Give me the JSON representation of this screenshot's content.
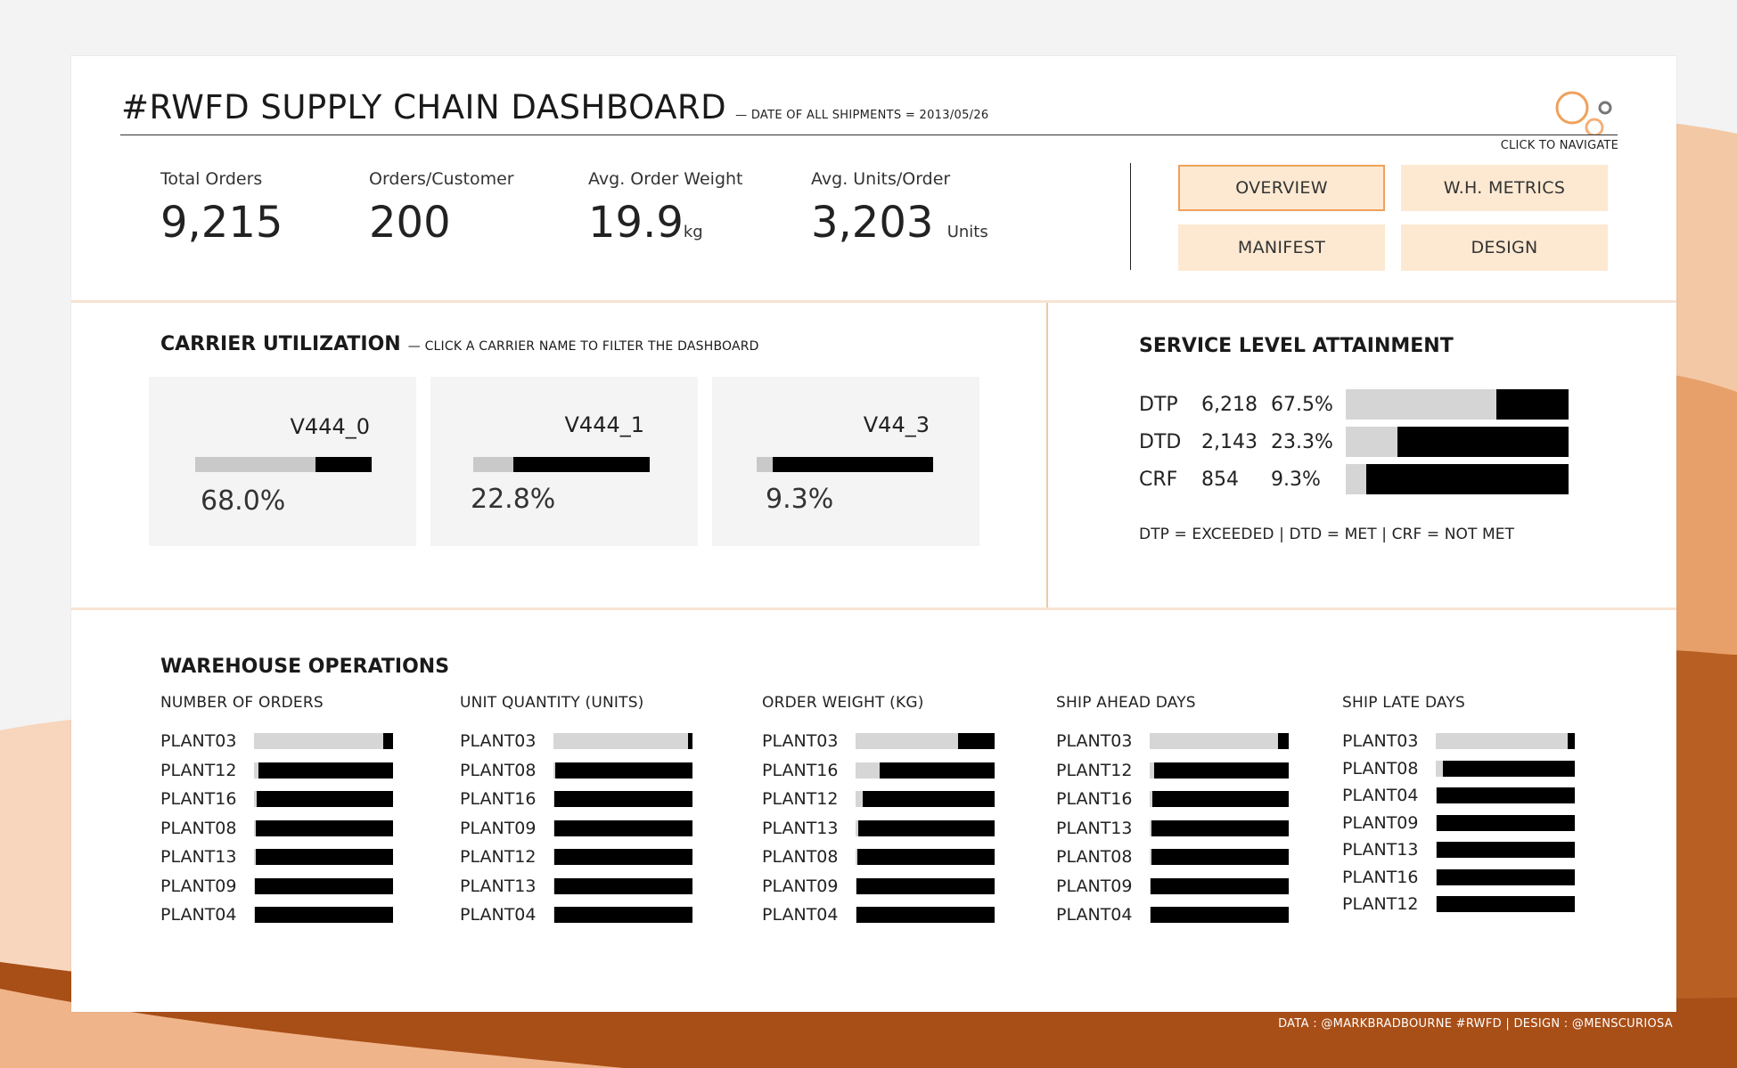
{
  "header": {
    "title": "#RWFD SUPPLY CHAIN DASHBOARD",
    "subtitle": "— DATE OF ALL SHIPMENTS = 2013/05/26",
    "nav_hint": "CLICK TO NAVIGATE"
  },
  "kpis": [
    {
      "label": "Total Orders",
      "value": "9,215",
      "unit": ""
    },
    {
      "label": "Orders/Customer",
      "value": "200",
      "unit": ""
    },
    {
      "label": "Avg. Order Weight",
      "value": "19.9",
      "unit": "kg"
    },
    {
      "label": "Avg. Units/Order",
      "value": "3,203",
      "unit": "Units"
    }
  ],
  "nav": {
    "overview": "OVERVIEW",
    "wh_metrics": "W.H. METRICS",
    "manifest": "MANIFEST",
    "design": "DESIGN"
  },
  "carrier": {
    "title": "CARRIER UTILIZATION",
    "subtitle": "— CLICK A CARRIER NAME TO FILTER THE DASHBOARD",
    "items": [
      {
        "name": "V444_0",
        "pct_label": "68.0%",
        "share": 0.68
      },
      {
        "name": "V444_1",
        "pct_label": "22.8%",
        "share": 0.228
      },
      {
        "name": "V44_3",
        "pct_label": "9.3%",
        "share": 0.093
      }
    ]
  },
  "sla": {
    "title": "SERVICE LEVEL ATTAINMENT",
    "rows": [
      {
        "code": "DTP",
        "count": "6,218",
        "pct_label": "67.5%",
        "share": 0.675
      },
      {
        "code": "DTD",
        "count": "2,143",
        "pct_label": "23.3%",
        "share": 0.233
      },
      {
        "code": "CRF",
        "count": "854",
        "pct_label": "9.3%",
        "share": 0.093
      }
    ],
    "legend": "DTP = EXCEEDED  |  DTD = MET  |  CRF = NOT MET"
  },
  "warehouse": {
    "title": "WAREHOUSE OPERATIONS",
    "columns": [
      {
        "header": "NUMBER OF ORDERS",
        "rows": [
          {
            "plant": "PLANT03",
            "share": 0.93
          },
          {
            "plant": "PLANT12",
            "share": 0.03
          },
          {
            "plant": "PLANT16",
            "share": 0.02
          },
          {
            "plant": "PLANT08",
            "share": 0.01
          },
          {
            "plant": "PLANT13",
            "share": 0.01
          },
          {
            "plant": "PLANT09",
            "share": 0.005
          },
          {
            "plant": "PLANT04",
            "share": 0.005
          }
        ]
      },
      {
        "header": "UNIT QUANTITY (UNITS)",
        "rows": [
          {
            "plant": "PLANT03",
            "share": 0.97
          },
          {
            "plant": "PLANT08",
            "share": 0.01
          },
          {
            "plant": "PLANT16",
            "share": 0.008
          },
          {
            "plant": "PLANT09",
            "share": 0.005
          },
          {
            "plant": "PLANT12",
            "share": 0.004
          },
          {
            "plant": "PLANT13",
            "share": 0.003
          },
          {
            "plant": "PLANT04",
            "share": 0.002
          }
        ]
      },
      {
        "header": "ORDER WEIGHT (KG)",
        "rows": [
          {
            "plant": "PLANT03",
            "share": 0.74
          },
          {
            "plant": "PLANT16",
            "share": 0.17
          },
          {
            "plant": "PLANT12",
            "share": 0.05
          },
          {
            "plant": "PLANT13",
            "share": 0.02
          },
          {
            "plant": "PLANT08",
            "share": 0.01
          },
          {
            "plant": "PLANT09",
            "share": 0.005
          },
          {
            "plant": "PLANT04",
            "share": 0.005
          }
        ]
      },
      {
        "header": "SHIP AHEAD DAYS",
        "rows": [
          {
            "plant": "PLANT03",
            "share": 0.92
          },
          {
            "plant": "PLANT12",
            "share": 0.03
          },
          {
            "plant": "PLANT16",
            "share": 0.02
          },
          {
            "plant": "PLANT13",
            "share": 0.01
          },
          {
            "plant": "PLANT08",
            "share": 0.01
          },
          {
            "plant": "PLANT09",
            "share": 0.005
          },
          {
            "plant": "PLANT04",
            "share": 0.005
          }
        ]
      },
      {
        "header": "SHIP LATE DAYS",
        "rows": [
          {
            "plant": "PLANT03",
            "share": 0.95
          },
          {
            "plant": "PLANT08",
            "share": 0.05
          },
          {
            "plant": "PLANT04",
            "share": 0.005
          },
          {
            "plant": "PLANT09",
            "share": 0.005
          },
          {
            "plant": "PLANT13",
            "share": 0.005
          },
          {
            "plant": "PLANT16",
            "share": 0.005
          },
          {
            "plant": "PLANT12",
            "share": 0.005
          }
        ]
      }
    ]
  },
  "footer": "DATA : @MARKBRADBOURNE #RWFD  |  DESIGN : @MENSCURIOSA",
  "colors": {
    "accent": "#f0a05a",
    "button_bg": "#fde9d2",
    "bar_light": "#d6d6d6",
    "bar_dark": "#000000",
    "wave_dark": "#a84e17"
  },
  "icons": {
    "logo": "circles-logo-icon"
  }
}
